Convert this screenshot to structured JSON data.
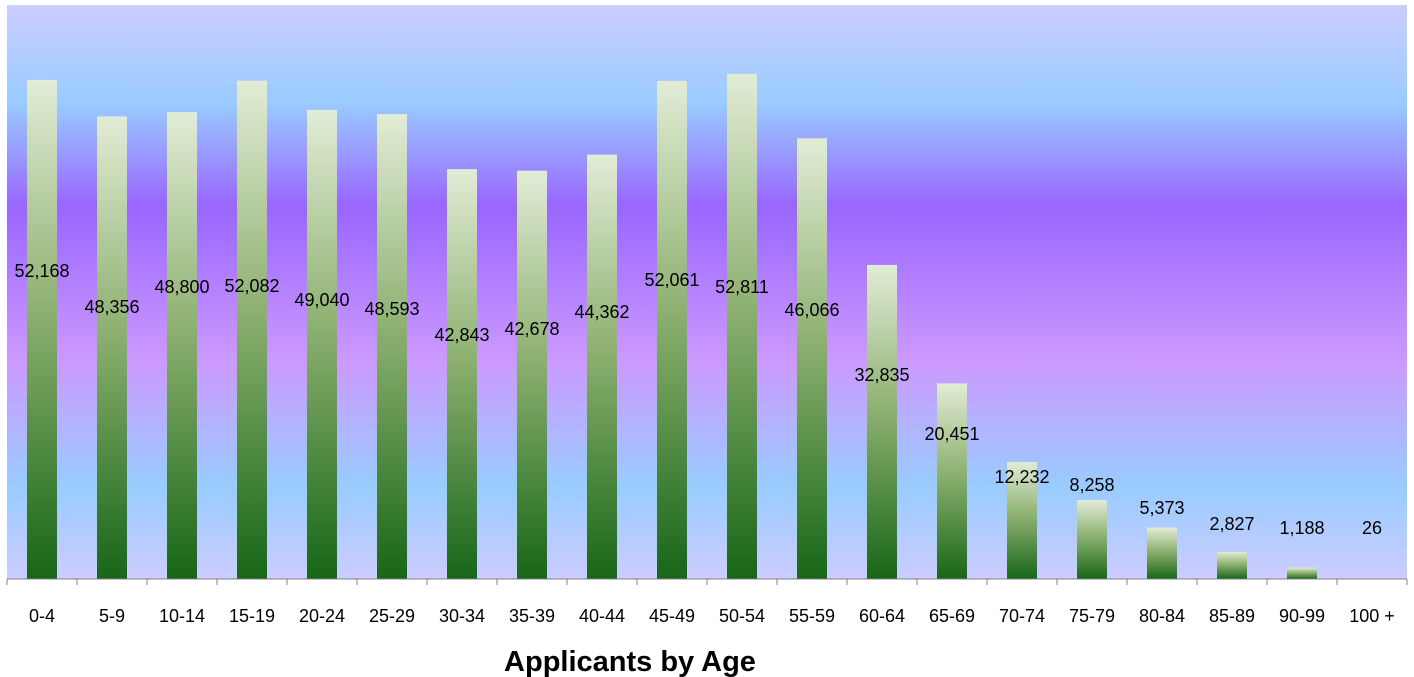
{
  "chart_data": {
    "type": "bar",
    "title": "",
    "xlabel": "Applicants by Age",
    "ylabel": "",
    "ylim": [
      0,
      60000
    ],
    "grid": false,
    "legend": "none",
    "categories": [
      "0-4",
      "5-9",
      "10-14",
      "15-19",
      "20-24",
      "25-29",
      "30-34",
      "35-39",
      "40-44",
      "45-49",
      "50-54",
      "55-59",
      "60-64",
      "65-69",
      "70-74",
      "75-79",
      "80-84",
      "85-89",
      "90-99",
      "100 +"
    ],
    "value_labels": [
      "52,168",
      "48,356",
      "48,800",
      "52,082",
      "49,040",
      "48,593",
      "42,843",
      "42,678",
      "44,362",
      "52,061",
      "52,811",
      "46,066",
      "32,835",
      "20,451",
      "12,232",
      "8,258",
      "5,373",
      "2,827",
      "1,188",
      "26"
    ],
    "values": [
      52168,
      48356,
      48800,
      52082,
      49040,
      48593,
      42843,
      42678,
      44362,
      52061,
      52811,
      46066,
      32835,
      20451,
      12232,
      8258,
      5373,
      2827,
      1188,
      26
    ],
    "colors": {
      "bar_top": "#e2ecd6",
      "bar_mid": "#8fb273",
      "bar_bottom": "#176617",
      "bg_top": "#ccccff",
      "bg_blue": "#99ccff",
      "bg_purple": "#9966ff",
      "bg_violet": "#cc99ff"
    }
  }
}
